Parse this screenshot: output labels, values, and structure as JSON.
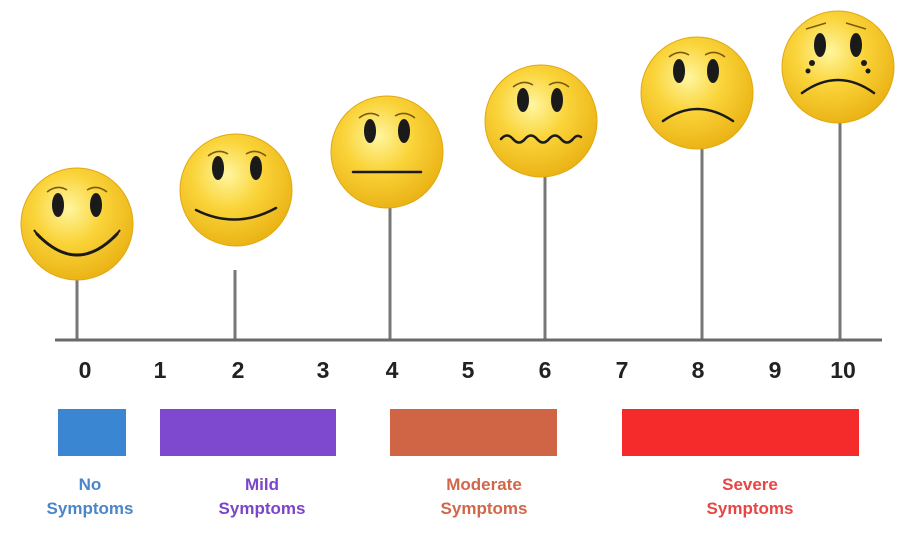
{
  "scale": {
    "ticks": [
      "0",
      "1",
      "2",
      "3",
      "4",
      "5",
      "6",
      "7",
      "8",
      "9",
      "10"
    ],
    "faces": [
      {
        "value": 0,
        "expression": "big-smile",
        "icon": "grinning-face-icon"
      },
      {
        "value": 2,
        "expression": "smile",
        "icon": "smiling-face-icon"
      },
      {
        "value": 4,
        "expression": "neutral",
        "icon": "neutral-face-icon"
      },
      {
        "value": 6,
        "expression": "wavy",
        "icon": "uneasy-face-icon"
      },
      {
        "value": 8,
        "expression": "frown",
        "icon": "frowning-face-icon"
      },
      {
        "value": 10,
        "expression": "crying",
        "icon": "crying-face-icon"
      }
    ]
  },
  "categories": [
    {
      "line1": "No",
      "line2": "Symptoms",
      "color": "#3b86d2",
      "text_color": "#4a86c8"
    },
    {
      "line1": "Mild",
      "line2": "Symptoms",
      "color": "#7f49cf",
      "text_color": "#7b45c8"
    },
    {
      "line1": "Moderate",
      "line2": "Symptoms",
      "color": "#d06545",
      "text_color": "#d0674a"
    },
    {
      "line1": "Severe",
      "line2": "Symptoms",
      "color": "#f52a2a",
      "text_color": "#e84545"
    }
  ],
  "colors": {
    "face_fill": "#f7cf2c",
    "face_edge": "#e3ac12",
    "axis": "#666666",
    "features": "#1a1a1a"
  }
}
